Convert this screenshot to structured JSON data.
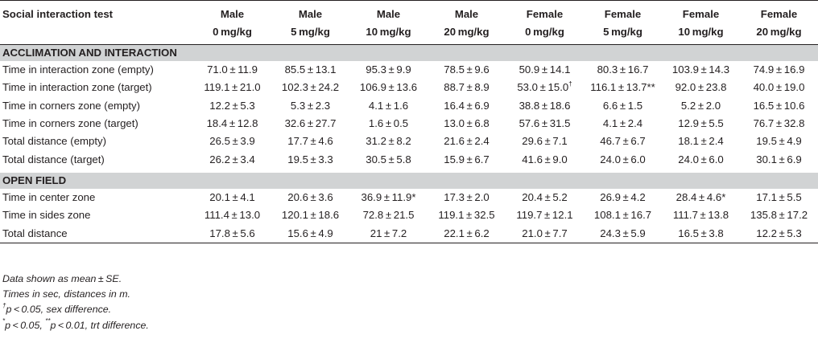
{
  "table": {
    "header_label": "Social interaction test",
    "columns": [
      {
        "sex": "Male",
        "dose": "0 mg/kg"
      },
      {
        "sex": "Male",
        "dose": "5 mg/kg"
      },
      {
        "sex": "Male",
        "dose": "10 mg/kg"
      },
      {
        "sex": "Male",
        "dose": "20 mg/kg"
      },
      {
        "sex": "Female",
        "dose": "0 mg/kg"
      },
      {
        "sex": "Female",
        "dose": "5 mg/kg"
      },
      {
        "sex": "Female",
        "dose": "10 mg/kg"
      },
      {
        "sex": "Female",
        "dose": "20 mg/kg"
      }
    ],
    "sections": [
      {
        "title": "ACCLIMATION AND INTERACTION",
        "rows": [
          {
            "label": "Time in interaction zone (empty)",
            "cells": [
              {
                "v": "71.0 ± 11.9"
              },
              {
                "v": "85.5 ± 13.1"
              },
              {
                "v": "95.3 ± 9.9"
              },
              {
                "v": "78.5 ± 9.6"
              },
              {
                "v": "50.9 ± 14.1"
              },
              {
                "v": "80.3 ± 16.7"
              },
              {
                "v": "103.9 ± 14.3"
              },
              {
                "v": "74.9 ± 16.9"
              }
            ]
          },
          {
            "label": "Time in interaction zone (target)",
            "cells": [
              {
                "v": "119.1 ± 21.0"
              },
              {
                "v": "102.3 ± 24.2"
              },
              {
                "v": "106.9 ± 13.6"
              },
              {
                "v": "88.7 ± 8.9"
              },
              {
                "v": "53.0 ± 15.0",
                "sup": "†"
              },
              {
                "v": "116.1 ± 13.7**"
              },
              {
                "v": "92.0 ± 23.8"
              },
              {
                "v": "40.0 ± 19.0"
              }
            ]
          },
          {
            "label": "Time in corners zone (empty)",
            "cells": [
              {
                "v": "12.2 ± 5.3"
              },
              {
                "v": "5.3 ± 2.3"
              },
              {
                "v": "4.1 ± 1.6"
              },
              {
                "v": "16.4 ± 6.9"
              },
              {
                "v": "38.8 ± 18.6"
              },
              {
                "v": "6.6 ± 1.5"
              },
              {
                "v": "5.2 ± 2.0"
              },
              {
                "v": "16.5 ± 10.6"
              }
            ]
          },
          {
            "label": "Time in corners zone (target)",
            "cells": [
              {
                "v": "18.4 ± 12.8"
              },
              {
                "v": "32.6 ± 27.7"
              },
              {
                "v": "1.6 ± 0.5"
              },
              {
                "v": "13.0 ± 6.8"
              },
              {
                "v": "57.6 ± 31.5"
              },
              {
                "v": "4.1 ± 2.4"
              },
              {
                "v": "12.9 ± 5.5"
              },
              {
                "v": "76.7 ± 32.8"
              }
            ]
          },
          {
            "label": "Total distance (empty)",
            "cells": [
              {
                "v": "26.5 ± 3.9"
              },
              {
                "v": "17.7 ± 4.6"
              },
              {
                "v": "31.2 ± 8.2"
              },
              {
                "v": "21.6 ± 2.4"
              },
              {
                "v": "29.6 ± 7.1"
              },
              {
                "v": "46.7 ± 6.7"
              },
              {
                "v": "18.1 ± 2.4"
              },
              {
                "v": "19.5 ± 4.9"
              }
            ]
          },
          {
            "label": "Total distance (target)",
            "cells": [
              {
                "v": "26.2 ± 3.4"
              },
              {
                "v": "19.5 ± 3.3"
              },
              {
                "v": "30.5 ± 5.8"
              },
              {
                "v": "15.9 ± 6.7"
              },
              {
                "v": "41.6 ± 9.0"
              },
              {
                "v": "24.0 ± 6.0"
              },
              {
                "v": "24.0 ± 6.0"
              },
              {
                "v": "30.1 ± 6.9"
              }
            ]
          }
        ]
      },
      {
        "title": "OPEN FIELD",
        "rows": [
          {
            "label": "Time in center zone",
            "cells": [
              {
                "v": "20.1 ± 4.1"
              },
              {
                "v": "20.6 ± 3.6"
              },
              {
                "v": "36.9 ± 11.9*"
              },
              {
                "v": "17.3 ± 2.0"
              },
              {
                "v": "20.4 ± 5.2"
              },
              {
                "v": "26.9 ± 4.2"
              },
              {
                "v": "28.4 ± 4.6*"
              },
              {
                "v": "17.1 ± 5.5"
              }
            ]
          },
          {
            "label": "Time in sides zone",
            "cells": [
              {
                "v": "111.4 ± 13.0"
              },
              {
                "v": "120.1 ± 18.6"
              },
              {
                "v": "72.8 ± 21.5"
              },
              {
                "v": "119.1 ± 32.5"
              },
              {
                "v": "119.7 ± 12.1"
              },
              {
                "v": "108.1 ± 16.7"
              },
              {
                "v": "111.7 ± 13.8"
              },
              {
                "v": "135.8 ± 17.2"
              }
            ]
          },
          {
            "label": "Total distance",
            "cells": [
              {
                "v": "17.8 ± 5.6"
              },
              {
                "v": "15.6 ± 4.9"
              },
              {
                "v": "21 ± 7.2"
              },
              {
                "v": "22.1 ± 6.2"
              },
              {
                "v": "21.0 ± 7.7"
              },
              {
                "v": "24.3 ± 5.9"
              },
              {
                "v": "16.5 ± 3.8"
              },
              {
                "v": "12.2 ± 5.3"
              }
            ]
          }
        ]
      }
    ]
  },
  "notes": {
    "line1": "Data shown as mean ± SE.",
    "line2": "Times in sec, distances in m.",
    "line3_sup": "†",
    "line3": "p < 0.05, sex difference.",
    "line4_sup1": "*",
    "line4_a": "p < 0.05, ",
    "line4_sup2": "**",
    "line4_b": "p < 0.01, trt difference."
  }
}
